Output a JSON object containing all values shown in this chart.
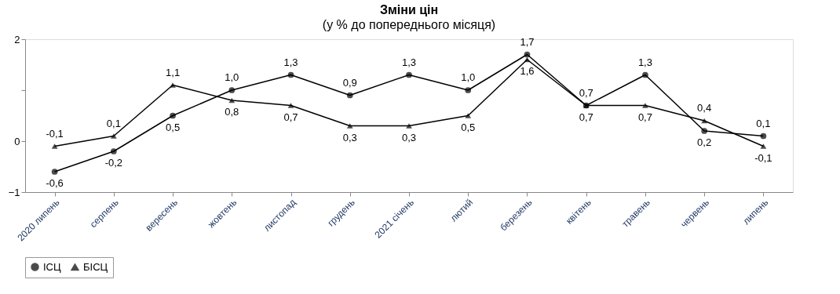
{
  "chart_data": {
    "type": "line",
    "title": "Зміни цін",
    "subtitle": "(у % до попереднього місяця)",
    "categories": [
      "2020 липень",
      "серпень",
      "вересень",
      "жовтень",
      "листопад",
      "грудень",
      "2021 січень",
      "лютий",
      "березень",
      "квітень",
      "травень",
      "червень",
      "липень"
    ],
    "series": [
      {
        "name": "ІСЦ",
        "color": "#000000",
        "marker": "circle",
        "values": [
          -0.6,
          -0.2,
          0.5,
          1.0,
          1.3,
          0.9,
          1.3,
          1.0,
          1.7,
          0.7,
          1.3,
          0.2,
          0.1
        ],
        "value_labels": [
          "-0,6",
          "-0,2",
          "0,5",
          "1,0",
          "1,3",
          "0,9",
          "1,3",
          "1,0",
          "1,7",
          "0,7",
          "1,3",
          "0,2",
          "0,1"
        ]
      },
      {
        "name": "БІСЦ",
        "color": "#000000",
        "marker": "triangle",
        "values": [
          -0.1,
          0.1,
          1.1,
          0.8,
          0.7,
          0.3,
          0.3,
          0.5,
          1.6,
          0.7,
          0.7,
          0.4,
          -0.1
        ],
        "value_labels": [
          "-0,1",
          "0,1",
          "1,1",
          "0,8",
          "0,7",
          "0,3",
          "0,3",
          "0,5",
          "1,6",
          "0,7",
          "0,7",
          "0,4",
          "-0,1"
        ]
      }
    ],
    "ylim": [
      -1,
      2
    ],
    "yticks": [
      -1,
      0,
      {
        "value": 1,
        "label": null
      },
      2
    ],
    "grid": false,
    "legend": "bottom"
  }
}
